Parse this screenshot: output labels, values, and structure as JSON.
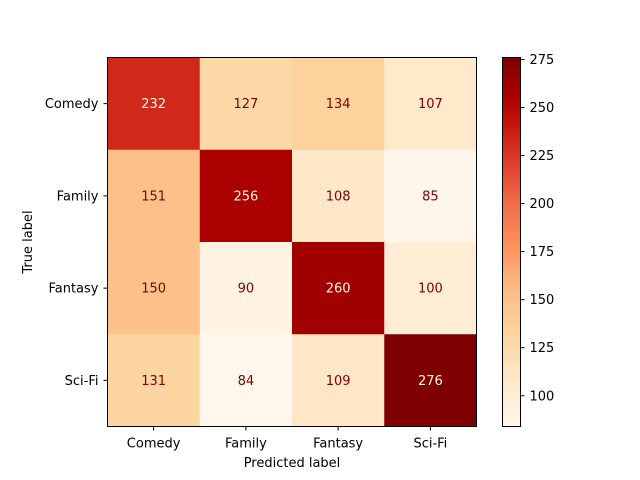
{
  "chart_data": {
    "type": "heatmap",
    "title": "",
    "xlabel": "Predicted label",
    "ylabel": "True label",
    "x_categories": [
      "Comedy",
      "Family",
      "Fantasy",
      "Sci-Fi"
    ],
    "y_categories": [
      "Comedy",
      "Family",
      "Fantasy",
      "Sci-Fi"
    ],
    "values": [
      [
        232,
        127,
        134,
        107
      ],
      [
        151,
        256,
        108,
        85
      ],
      [
        150,
        90,
        260,
        100
      ],
      [
        131,
        84,
        109,
        276
      ]
    ],
    "colormap": "OrRd",
    "color_range": [
      84,
      276
    ],
    "colorbar_ticks": [
      "100",
      "125",
      "150",
      "175",
      "200",
      "225",
      "250",
      "275"
    ],
    "colorbar_values": [
      100,
      125,
      150,
      175,
      200,
      225,
      250,
      275
    ],
    "grid": false
  }
}
